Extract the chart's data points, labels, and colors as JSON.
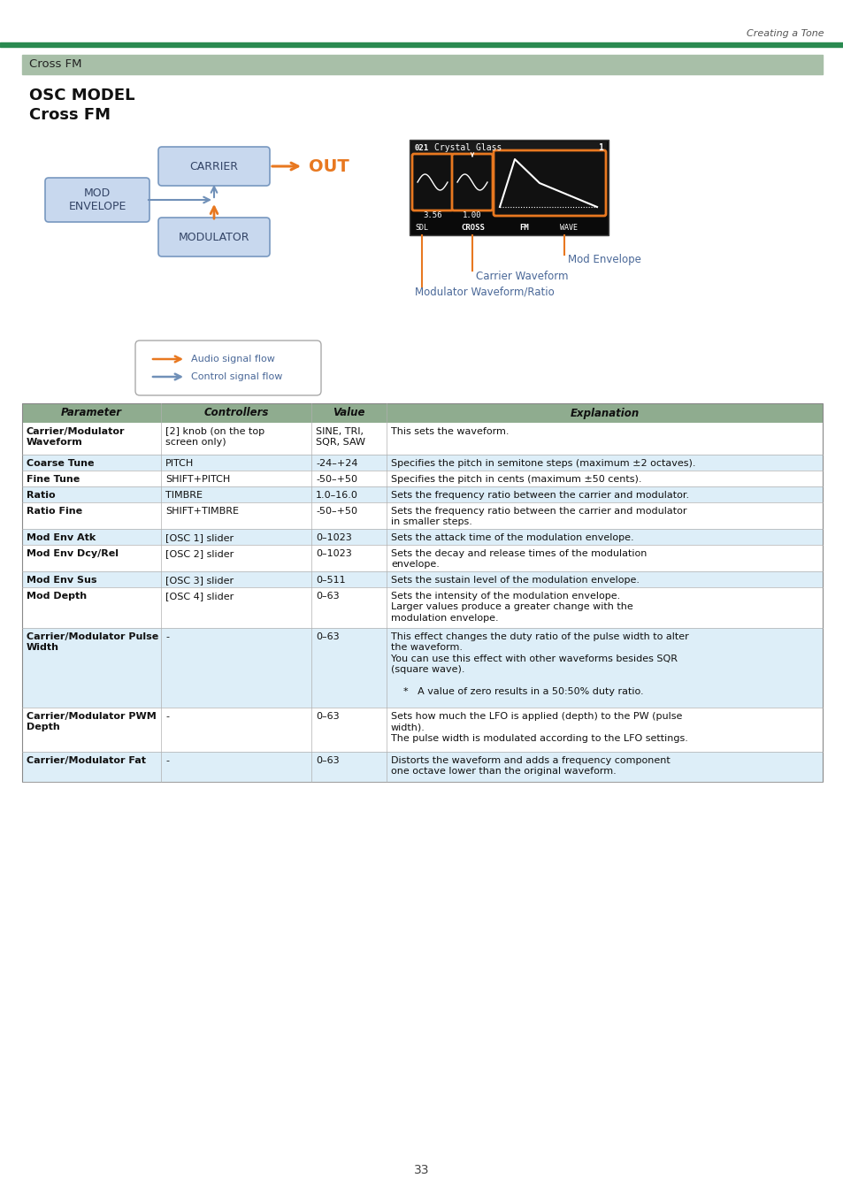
{
  "page_header_right": "Creating a Tone",
  "header_bar_color": "#2a8a50",
  "section_bar_color": "#a8bfa8",
  "section_title": "Cross FM",
  "osc_model_label": "OSC MODEL",
  "cross_fm_label": "Cross FM",
  "page_number": "33",
  "table_header_bg": "#8fac8f",
  "table_row_alt_bg": "#ddeef8",
  "table_row_bg": "#ffffff",
  "legend_audio": "Audio signal flow",
  "legend_control": "Control signal flow",
  "box_fill": "#c8d8ee",
  "box_edge": "#7898c0",
  "orange": "#e87820",
  "blue_arr": "#7090b8",
  "ann_blue": "#4a6898",
  "table_rows": [
    {
      "param": "Carrier/Modulator\nWaveform",
      "controllers": "[2] knob (on the top\nscreen only)",
      "value": "SINE, TRI,\nSQR, SAW",
      "explanation": "This sets the waveform.",
      "bg": "#ffffff",
      "exp_valign": "top",
      "exp_yoffset": 6
    },
    {
      "param": "Coarse Tune",
      "controllers": "PITCH",
      "value": "-24–+24",
      "explanation": "Specifies the pitch in semitone steps (maximum ±2 octaves).",
      "bg": "#ddeef8",
      "exp_valign": "center",
      "exp_yoffset": 0
    },
    {
      "param": "Fine Tune",
      "controllers": "SHIFT+PITCH",
      "value": "-50–+50",
      "explanation": "Specifies the pitch in cents (maximum ±50 cents).",
      "bg": "#ffffff",
      "exp_valign": "center",
      "exp_yoffset": 0
    },
    {
      "param": "Ratio",
      "controllers": "TIMBRE",
      "value": "1.0–16.0",
      "explanation": "Sets the frequency ratio between the carrier and modulator.",
      "bg": "#ddeef8",
      "exp_valign": "center",
      "exp_yoffset": 0
    },
    {
      "param": "Ratio Fine",
      "controllers": "SHIFT+TIMBRE",
      "value": "-50–+50",
      "explanation": "Sets the frequency ratio between the carrier and modulator\nin smaller steps.",
      "bg": "#ffffff",
      "exp_valign": "center",
      "exp_yoffset": 0
    },
    {
      "param": "Mod Env Atk",
      "controllers": "[OSC 1] slider",
      "value": "0–1023",
      "explanation": "Sets the attack time of the modulation envelope.",
      "bg": "#ddeef8",
      "exp_valign": "center",
      "exp_yoffset": 0
    },
    {
      "param": "Mod Env Dcy/Rel",
      "controllers": "[OSC 2] slider",
      "value": "0–1023",
      "explanation": "Sets the decay and release times of the modulation\nenvelope.",
      "bg": "#ffffff",
      "exp_valign": "center",
      "exp_yoffset": 0
    },
    {
      "param": "Mod Env Sus",
      "controllers": "[OSC 3] slider",
      "value": "0–511",
      "explanation": "Sets the sustain level of the modulation envelope.",
      "bg": "#ddeef8",
      "exp_valign": "center",
      "exp_yoffset": 0
    },
    {
      "param": "Mod Depth",
      "controllers": "[OSC 4] slider",
      "value": "0–63",
      "explanation": "Sets the intensity of the modulation envelope.\nLarger values produce a greater change with the\nmodulation envelope.",
      "bg": "#ffffff",
      "exp_valign": "center",
      "exp_yoffset": 0
    },
    {
      "param": "Carrier/Modulator Pulse\nWidth",
      "controllers": "-",
      "value": "0–63",
      "explanation": "This effect changes the duty ratio of the pulse width to alter\nthe waveform.\nYou can use this effect with other waveforms besides SQR\n(square wave).\n\n    *   A value of zero results in a 50:50% duty ratio.",
      "bg": "#ddeef8",
      "exp_valign": "top",
      "exp_yoffset": 6
    },
    {
      "param": "Carrier/Modulator PWM\nDepth",
      "controllers": "-",
      "value": "0–63",
      "explanation": "Sets how much the LFO is applied (depth) to the PW (pulse\nwidth).\nThe pulse width is modulated according to the LFO settings.",
      "bg": "#ffffff",
      "exp_valign": "top",
      "exp_yoffset": 6
    },
    {
      "param": "Carrier/Modulator Fat",
      "controllers": "-",
      "value": "0–63",
      "explanation": "Distorts the waveform and adds a frequency component\none octave lower than the original waveform.",
      "bg": "#ddeef8",
      "exp_valign": "top",
      "exp_yoffset": 6
    }
  ]
}
